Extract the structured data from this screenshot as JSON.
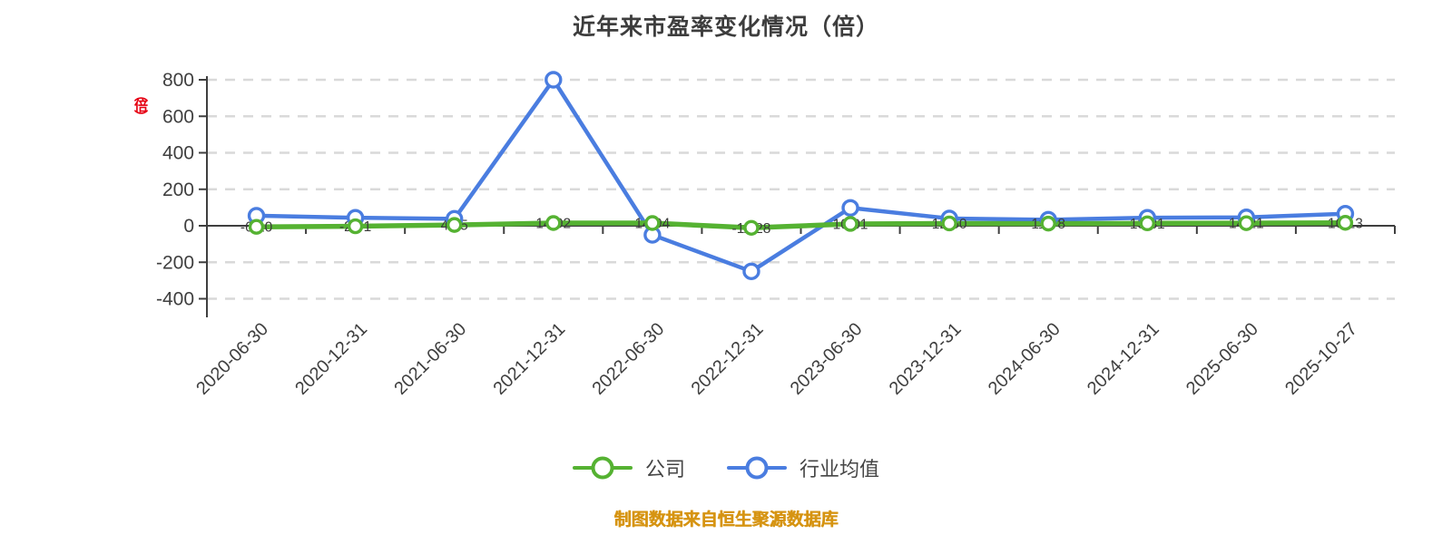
{
  "title": "近年来市盈率变化情况（倍）",
  "y_axis_unit": "（倍）",
  "footer": "制图数据来自恒生聚源数据库",
  "legend": [
    {
      "label": "公司",
      "color": "#55b232"
    },
    {
      "label": "行业均值",
      "color": "#4a7de0"
    }
  ],
  "colors": {
    "title_text": "#3d3d3d",
    "axis_text": "#3f3f3f",
    "axis_line": "#3f3f3f",
    "gridline": "#d9d9d9",
    "company_green": "#55b232",
    "industry_blue": "#4a7de0",
    "unit_red": "#e60012",
    "footer_orange": "#d69412",
    "data_label_text": "#3a3a3a"
  },
  "chart_data": {
    "type": "line",
    "title": "近年来市盈率变化情况（倍）",
    "xlabel": "",
    "ylabel": "（倍）",
    "ylim": [
      -400,
      800
    ],
    "yticks": [
      800,
      600,
      400,
      200,
      0,
      -200,
      -400
    ],
    "grid": "horizontal-dashed",
    "legend_position": "bottom",
    "categories": [
      "2020-06-30",
      "2020-12-31",
      "2021-06-30",
      "2021-12-31",
      "2022-06-30",
      "2022-12-31",
      "2023-06-30",
      "2023-12-31",
      "2024-06-30",
      "2024-12-31",
      "2025-06-30",
      "2025-10-27"
    ],
    "series": [
      {
        "name": "行业均值",
        "color": "#4a7de0",
        "show_labels": false,
        "values": [
          55,
          44,
          38,
          800,
          -50,
          -250,
          98,
          40,
          33,
          44,
          46,
          66
        ]
      },
      {
        "name": "公司",
        "color": "#55b232",
        "show_labels": true,
        "values": [
          -6.1,
          -2.71,
          4.35,
          14.92,
          14.94,
          -11.28,
          10.01,
          12.5,
          11.78,
          13.31,
          14.21,
          16.13
        ],
        "labels": [
          "-6.10",
          "-2.71",
          "4.35",
          "14.92",
          "14.94",
          "-11.28",
          "10.01",
          "12.50",
          "11.78",
          "13.31",
          "14.21",
          "16.13"
        ]
      }
    ]
  }
}
